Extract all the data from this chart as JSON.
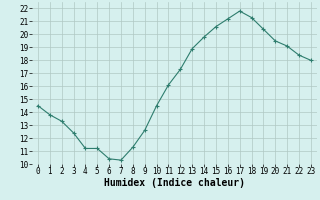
{
  "x": [
    0,
    1,
    2,
    3,
    4,
    5,
    6,
    7,
    8,
    9,
    10,
    11,
    12,
    13,
    14,
    15,
    16,
    17,
    18,
    19,
    20,
    21,
    22,
    23
  ],
  "y": [
    14.5,
    13.8,
    13.3,
    12.4,
    11.2,
    11.2,
    10.4,
    10.3,
    11.3,
    12.6,
    14.5,
    16.1,
    17.3,
    18.9,
    19.8,
    20.6,
    21.2,
    21.8,
    21.3,
    20.4,
    19.5,
    19.1,
    18.4,
    18.0
  ],
  "line_color": "#2e7d6e",
  "marker": "+",
  "bg_color": "#d6f0ee",
  "grid_color": "#b0c8c4",
  "xlabel": "Humidex (Indice chaleur)",
  "ylim": [
    10,
    22.5
  ],
  "xlim": [
    -0.5,
    23.5
  ],
  "yticks": [
    10,
    11,
    12,
    13,
    14,
    15,
    16,
    17,
    18,
    19,
    20,
    21,
    22
  ],
  "xticks": [
    0,
    1,
    2,
    3,
    4,
    5,
    6,
    7,
    8,
    9,
    10,
    11,
    12,
    13,
    14,
    15,
    16,
    17,
    18,
    19,
    20,
    21,
    22,
    23
  ],
  "tick_fontsize": 5.5,
  "xlabel_fontsize": 7,
  "marker_size": 3,
  "linewidth": 0.8
}
